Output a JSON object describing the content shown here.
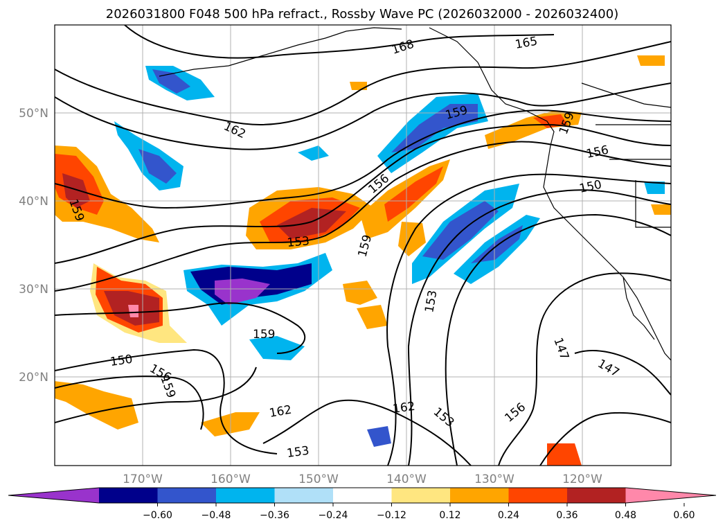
{
  "title": "2026031800 F048 500 hPa refract., Rossby Wave PC (2026032000 - 2026032400)",
  "lat_labels": [
    "50°N",
    "40°N",
    "30°N",
    "20°N"
  ],
  "lon_labels": [
    "170°W",
    "160°W",
    "150°W",
    "140°W",
    "130°W",
    "120°W"
  ],
  "colorbar": {
    "ticks": [
      "−0.60",
      "−0.48",
      "−0.36",
      "−0.24",
      "−0.12",
      "0.12",
      "0.24",
      "0.36",
      "0.48",
      "0.60"
    ],
    "colors": [
      "#9933cc",
      "#00008b",
      "#3355cc",
      "#00b4ee",
      "#b0e0f8",
      "#ffffff",
      "#ffe680",
      "#ffa500",
      "#ff4500",
      "#b22222",
      "#ff88aa"
    ]
  },
  "contour_labels": [
    "168",
    "165",
    "162",
    "159",
    "159",
    "159",
    "156",
    "156",
    "150",
    "153",
    "159",
    "159",
    "153",
    "150",
    "156",
    "159",
    "162",
    "162",
    "153",
    "153",
    "156",
    "147",
    "147"
  ]
}
